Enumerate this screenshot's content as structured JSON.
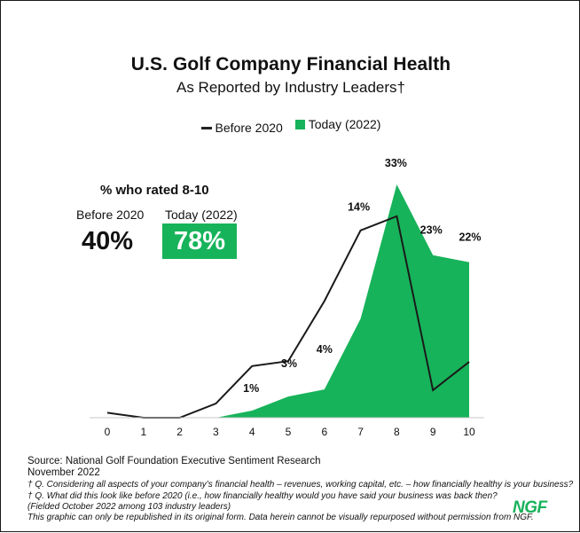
{
  "chart_data": {
    "type": "area",
    "title": "U.S. Golf Company Financial Health",
    "subtitle": "As Reported by Industry Leaders†",
    "x": [
      0,
      1,
      2,
      3,
      4,
      5,
      6,
      7,
      8,
      9,
      10
    ],
    "xlabel": "",
    "ylabel": "",
    "ylim": [
      0,
      34
    ],
    "series": [
      {
        "name": "Before 2020",
        "style": "line",
        "color": "#1a1a1a",
        "values": [
          0.7,
          0,
          0,
          2,
          7.3,
          8,
          16.5,
          26.5,
          28.5,
          3.9,
          7.9
        ]
      },
      {
        "name": "Today (2022)",
        "style": "area",
        "color": "#17b35a",
        "values": [
          0,
          0,
          0,
          0,
          1,
          3,
          4,
          14,
          33,
          23,
          22
        ]
      }
    ],
    "data_labels": [
      {
        "x": 4,
        "text": "1%"
      },
      {
        "x": 5,
        "text": "3%"
      },
      {
        "x": 6,
        "text": "4%"
      },
      {
        "x": 7,
        "text": "14%"
      },
      {
        "x": 8,
        "text": "33%"
      },
      {
        "x": 9,
        "text": "23%"
      },
      {
        "x": 10,
        "text": "22%"
      }
    ],
    "legend": [
      "Before 2020",
      "Today (2022)"
    ]
  },
  "summary": {
    "heading": "% who rated 8-10",
    "before_label": "Before 2020",
    "today_label": "Today (2022)",
    "before_value": "40%",
    "today_value": "78%"
  },
  "footer": {
    "source": "Source: National Golf Foundation Executive Sentiment Research",
    "date": "November 2022",
    "note1": "† Q. Considering all aspects of your company’s financial health – revenues, working capital, etc. – how financially healthy is your business?",
    "note2": "† Q. What did this look like before 2020 (i.e., how financially healthy would you have said your business was back then?",
    "note3": "(Fielded October 2022 among 103 industry leaders)",
    "note4": "This graphic can only be republished in its original form. Data herein cannot be visually repurposed without permission from NGF.",
    "logo": "NGF"
  },
  "colors": {
    "accent": "#17b35a",
    "line": "#1a1a1a"
  }
}
